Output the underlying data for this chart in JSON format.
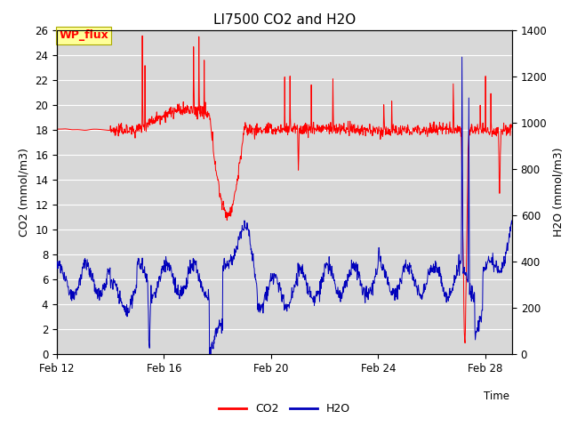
{
  "title": "LI7500 CO2 and H2O",
  "xlabel": "Time",
  "ylabel_left": "CO2 (mmol/m3)",
  "ylabel_right": "H2O (mmol/m3)",
  "ylim_left": [
    0,
    26
  ],
  "ylim_right": [
    0,
    1400
  ],
  "yticks_left": [
    0,
    2,
    4,
    6,
    8,
    10,
    12,
    14,
    16,
    18,
    20,
    22,
    24,
    26
  ],
  "yticks_right": [
    0,
    200,
    400,
    600,
    800,
    1000,
    1200,
    1400
  ],
  "date_ticks": [
    "Feb 12",
    "Feb 16",
    "Feb 20",
    "Feb 24",
    "Feb 28"
  ],
  "title_fontsize": 11,
  "label_fontsize": 9,
  "tick_fontsize": 8.5,
  "legend_fontsize": 9,
  "bg_color": "#d8d8d8",
  "grid_color": "#ffffff",
  "co2_color": "#ff0000",
  "h2o_color": "#0000bb",
  "annotation_text": "WP_flux",
  "annotation_bg": "#ffff99",
  "annotation_border": "#aaaa00",
  "annotation_fontsize": 9
}
